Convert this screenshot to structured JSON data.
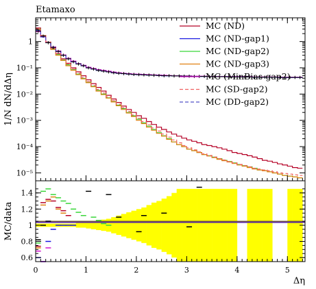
{
  "chart_data": {
    "type": "line",
    "title": "Etamaxo",
    "xlabel": "Δη",
    "ylabel": "1/N dN/dΔη",
    "ratio_ylabel": "MC/data",
    "x_ticks": [
      "0",
      "1",
      "2",
      "3",
      "4",
      "5"
    ],
    "y_ticks": [
      "1",
      "10⁻¹",
      "10⁻²",
      "10⁻³",
      "10⁻⁴",
      "10⁻⁵"
    ],
    "ratio_ticks": [
      "1.4",
      "1.2",
      "1",
      "0.8",
      "0.6"
    ],
    "xlim": [
      0,
      5.35
    ],
    "ylim": [
      5e-06,
      8
    ],
    "ratio_ylim": [
      0.55,
      1.55
    ],
    "y_scale": "log",
    "legend_position": "top-right",
    "bin_width": 0.1,
    "x": [
      0.05,
      0.15,
      0.25,
      0.35,
      0.45,
      0.55,
      0.65,
      0.75,
      0.85,
      0.95,
      1.05,
      1.15,
      1.25,
      1.35,
      1.45,
      1.55,
      1.65,
      1.75,
      1.85,
      1.95,
      2.05,
      2.15,
      2.25,
      2.35,
      2.45,
      2.55,
      2.65,
      2.75,
      2.85,
      2.95,
      3.05,
      3.15,
      3.25,
      3.35,
      3.45,
      3.55,
      3.65,
      3.75,
      3.85,
      3.95,
      4.05,
      4.15,
      4.25,
      4.35,
      4.45,
      4.55,
      4.65,
      4.75,
      4.85,
      4.95,
      5.05,
      5.15,
      5.25
    ],
    "data_points": [
      2.5,
      1.6,
      0.9,
      0.6,
      0.42,
      0.3,
      0.22,
      0.17,
      0.14,
      0.12,
      0.1,
      0.09,
      0.08,
      0.075,
      0.07,
      0.065,
      0.062,
      0.06,
      0.058,
      0.056,
      0.055,
      0.054,
      0.053,
      0.052,
      0.051,
      0.05,
      0.05,
      0.049,
      0.049,
      0.048,
      0.048,
      0.047,
      0.047,
      0.047,
      0.046,
      0.046,
      0.046,
      0.046,
      0.045,
      0.045,
      0.045,
      0.045,
      0.045,
      0.044,
      0.044,
      0.044,
      0.044,
      0.044,
      0.043,
      0.043,
      0.043,
      0.043,
      0.043
    ],
    "series": [
      {
        "name": "MC (ND)",
        "color": "#b50026",
        "style": "solid",
        "values": [
          3.3,
          1.7,
          0.95,
          0.55,
          0.35,
          0.22,
          0.15,
          0.1,
          0.07,
          0.05,
          0.035,
          0.025,
          0.018,
          0.013,
          0.009,
          0.0065,
          0.0048,
          0.0035,
          0.0026,
          0.002,
          0.0015,
          0.0012,
          0.0009,
          0.0007,
          0.00055,
          0.00045,
          0.00036,
          0.0003,
          0.00025,
          0.00021,
          0.00018,
          0.00016,
          0.00014,
          0.00012,
          0.00011,
          0.0001,
          9e-05,
          8e-05,
          7e-05,
          6e-05,
          5.5e-05,
          5e-05,
          4.5e-05,
          4e-05,
          3.5e-05,
          3e-05,
          2.8e-05,
          2.5e-05,
          2.2e-05,
          2e-05,
          1.8e-05,
          1.6e-05,
          1.5e-05
        ]
      },
      {
        "name": "MC (ND-gap1)",
        "color": "#1515e0",
        "style": "solid",
        "values": [
          2.7,
          1.5,
          0.9,
          0.6,
          0.42,
          0.3,
          0.22,
          0.17,
          0.14,
          0.12,
          0.1,
          0.09,
          0.08,
          0.075,
          0.07,
          0.065,
          0.062,
          0.06,
          0.058,
          0.056,
          0.055,
          0.054,
          0.053,
          0.052,
          0.051,
          0.05,
          0.05,
          0.049,
          0.049,
          0.048,
          0.048,
          0.047,
          0.047,
          0.047,
          0.046,
          0.046,
          0.046,
          0.046,
          0.045,
          0.045,
          0.045,
          0.045,
          0.045,
          0.044,
          0.044,
          0.044,
          0.044,
          0.044,
          0.043,
          0.043,
          0.043,
          0.043,
          0.043
        ]
      },
      {
        "name": "MC (ND-gap2)",
        "color": "#39d639",
        "style": "solid",
        "values": [
          3.0,
          1.65,
          0.95,
          0.52,
          0.32,
          0.2,
          0.13,
          0.085,
          0.058,
          0.04,
          0.028,
          0.02,
          0.014,
          0.01,
          0.0072,
          0.0052,
          0.0038,
          0.0028,
          0.002,
          0.0015,
          0.0011,
          0.0008,
          0.0006,
          0.00045,
          0.00034,
          0.00026,
          0.0002,
          0.00015,
          0.00012,
          0.0001,
          8e-05,
          7e-05,
          6e-05,
          5e-05,
          4.5e-05,
          4e-05,
          3.5e-05,
          3e-05,
          2.7e-05,
          2.4e-05,
          2.1e-05,
          1.9e-05,
          1.7e-05,
          1.5e-05,
          1.3e-05,
          1.2e-05,
          1.1e-05,
          1e-05,
          9e-06,
          8e-06,
          7.5e-06,
          7e-06,
          6.5e-06
        ]
      },
      {
        "name": "MC (ND-gap3)",
        "color": "#e08010",
        "style": "solid",
        "values": [
          2.9,
          1.6,
          0.9,
          0.5,
          0.3,
          0.19,
          0.12,
          0.08,
          0.055,
          0.038,
          0.027,
          0.019,
          0.013,
          0.0095,
          0.007,
          0.005,
          0.0036,
          0.0026,
          0.0019,
          0.0014,
          0.001,
          0.00075,
          0.00055,
          0.00042,
          0.00032,
          0.00025,
          0.00019,
          0.00015,
          0.00012,
          0.0001,
          8e-05,
          7e-05,
          6e-05,
          5e-05,
          4.4e-05,
          3.8e-05,
          3.3e-05,
          2.9e-05,
          2.6e-05,
          2.3e-05,
          2e-05,
          1.8e-05,
          1.6e-05,
          1.4e-05,
          1.3e-05,
          1.2e-05,
          1.1e-05,
          1e-05,
          9e-06,
          8e-06,
          7.5e-06,
          7e-06,
          6.5e-06
        ]
      },
      {
        "name": "MC (MinBias-gap2)",
        "color": "#d014d0",
        "style": "solid",
        "values": [
          2.4,
          1.55,
          0.92,
          0.62,
          0.44,
          0.31,
          0.23,
          0.18,
          0.145,
          0.125,
          0.105,
          0.094,
          0.085,
          0.079,
          0.074,
          0.069,
          0.065,
          0.062,
          0.06,
          0.058,
          0.057,
          0.056,
          0.055,
          0.054,
          0.053,
          0.052,
          0.051,
          0.05,
          0.05,
          0.049,
          0.049,
          0.048,
          0.048,
          0.048,
          0.047,
          0.047,
          0.047,
          0.047,
          0.046,
          0.046,
          0.046,
          0.046,
          0.046,
          0.045,
          0.045,
          0.045,
          0.045,
          0.045,
          0.044,
          0.044,
          0.044,
          0.044,
          0.044
        ]
      },
      {
        "name": "MC (SD-gap2)",
        "color": "#f06060",
        "style": "dashed",
        "values": [
          3.1,
          1.68,
          0.97,
          0.55,
          0.34,
          0.21,
          0.14,
          0.09,
          0.062,
          0.043,
          0.03,
          0.021,
          0.015,
          0.011,
          0.0078,
          0.0056,
          0.0041,
          0.003,
          0.0022,
          0.0016,
          0.0012,
          0.0009,
          0.00068,
          0.00051,
          0.00039,
          0.0003,
          0.00023,
          0.00018,
          0.00014,
          0.00011,
          9e-05,
          7.5e-05,
          6.3e-05,
          5.3e-05,
          4.6e-05,
          4e-05,
          3.5e-05,
          3.1e-05,
          2.7e-05,
          2.4e-05,
          2.1e-05,
          1.9e-05,
          1.7e-05,
          1.5e-05,
          1.4e-05,
          1.3e-05,
          1.2e-05,
          1.1e-05,
          1e-05,
          9.5e-06,
          9e-06,
          8.5e-06,
          8e-06
        ]
      },
      {
        "name": "MC (DD-gap2)",
        "color": "#5050c8",
        "style": "dashed",
        "values": [
          2.6,
          1.58,
          0.91,
          0.6,
          0.42,
          0.3,
          0.22,
          0.17,
          0.14,
          0.12,
          0.1,
          0.09,
          0.08,
          0.075,
          0.07,
          0.065,
          0.062,
          0.06,
          0.058,
          0.056,
          0.055,
          0.054,
          0.053,
          0.052,
          0.051,
          0.05,
          0.05,
          0.049,
          0.049,
          0.048,
          0.048,
          0.047,
          0.047,
          0.047,
          0.046,
          0.046,
          0.046,
          0.046,
          0.045,
          0.045,
          0.045,
          0.045,
          0.045,
          0.044,
          0.044,
          0.044,
          0.044,
          0.044,
          0.043,
          0.043,
          0.043,
          0.043,
          0.043
        ]
      }
    ],
    "ratio": {
      "band_color": "#ffff00",
      "band_half_width": [
        0.02,
        0.02,
        0.02,
        0.02,
        0.02,
        0.02,
        0.02,
        0.02,
        0.03,
        0.03,
        0.04,
        0.05,
        0.06,
        0.07,
        0.08,
        0.1,
        0.12,
        0.14,
        0.16,
        0.18,
        0.2,
        0.22,
        0.25,
        0.28,
        0.3,
        0.33,
        0.36,
        0.4,
        0.45,
        0.45,
        0.45,
        0.45,
        0.45,
        0.45,
        0.45,
        0.45,
        0.45,
        0.45,
        0.45,
        0.45,
        0.45,
        0.45,
        0.45,
        0.45,
        0.45,
        0.45,
        0.45,
        0.45,
        0.45,
        0.45,
        0.45,
        0.45,
        0.45
      ],
      "band_gaps": [
        40,
        41,
        47,
        48,
        49
      ],
      "points": [
        {
          "color": "#39d639",
          "x": [
            0.05,
            0.15,
            0.25,
            0.35,
            0.45,
            0.55,
            0.65,
            0.75,
            0.85,
            0.95,
            1.15,
            1.25,
            1.35,
            1.45
          ],
          "y": [
            0.78,
            1.42,
            1.45,
            1.38,
            1.34,
            1.3,
            1.27,
            1.2,
            1.16,
            1.12,
            1.1,
            1.06,
            1.02,
            1.0
          ]
        },
        {
          "color": "#1515e0",
          "x": [
            0.05,
            0.15,
            0.25,
            0.35,
            0.45,
            0.55,
            0.65,
            0.75
          ],
          "y": [
            0.6,
            0.55,
            0.8,
            0.95,
            1.0,
            1.0,
            1.0,
            1.0
          ]
        },
        {
          "color": "#b50026",
          "x": [
            0.05,
            0.15,
            0.25,
            0.35,
            0.45,
            0.55,
            0.65
          ],
          "y": [
            0.74,
            1.28,
            1.32,
            1.3,
            1.22,
            1.18,
            1.12
          ]
        },
        {
          "color": "#e08010",
          "x": [
            0.05,
            0.15,
            0.25,
            0.35,
            0.45,
            0.55
          ],
          "y": [
            0.72,
            1.25,
            1.3,
            1.35,
            1.2,
            1.15
          ]
        },
        {
          "color": "#d014d0",
          "x": [
            0.05,
            0.15,
            0.25
          ],
          "y": [
            0.68,
            0.55,
            0.72
          ]
        },
        {
          "color": "#000000",
          "x": [
            0.05,
            0.15,
            0.25,
            1.05,
            1.45,
            1.65,
            2.05,
            2.15,
            2.55,
            3.05,
            3.25
          ],
          "y": [
            0.82,
            1.0,
            1.05,
            1.42,
            1.38,
            1.1,
            0.92,
            1.12,
            1.15,
            0.98,
            1.47
          ]
        }
      ]
    }
  }
}
